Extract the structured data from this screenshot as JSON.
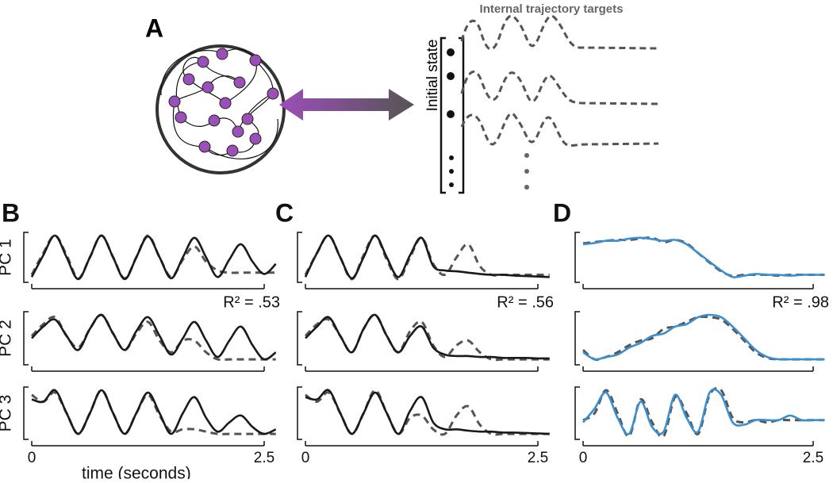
{
  "diagram": {
    "label": "A",
    "title": "Internal trajectory targets",
    "state_label": "Initial state"
  },
  "chart_data": [
    {
      "type": "line",
      "panel": "B",
      "ylabel": "PC 1",
      "annotation": "R² = .53",
      "x": [
        0,
        0.125,
        0.25,
        0.375,
        0.5,
        0.625,
        0.75,
        0.875,
        1,
        1.125,
        1.25,
        1.375,
        1.5,
        1.625,
        1.75,
        1.875,
        2,
        2.125,
        2.25,
        2.375,
        2.5,
        2.625
      ],
      "xlim": [
        0,
        2.7
      ],
      "ylim": [
        0,
        1
      ],
      "series": [
        {
          "color": "#555555",
          "dashed": true,
          "values": [
            0.1,
            0.6,
            1.0,
            0.55,
            0.02,
            0.5,
            1.0,
            0.5,
            0.02,
            0.5,
            1.0,
            0.5,
            0.05,
            0.45,
            0.75,
            0.4,
            0.2,
            0.15,
            0.15,
            0.15,
            0.15,
            0.15
          ]
        },
        {
          "color": "#1a1a1a",
          "dashed": false,
          "values": [
            0.05,
            0.55,
            1.0,
            0.5,
            0.0,
            0.5,
            1.0,
            0.5,
            0.0,
            0.5,
            0.98,
            0.5,
            0.02,
            0.5,
            0.95,
            0.5,
            0.05,
            0.45,
            0.8,
            0.4,
            0.12,
            0.35
          ]
        }
      ]
    },
    {
      "type": "line",
      "panel": "C",
      "annotation": "R² = .56",
      "x": [
        0,
        0.125,
        0.25,
        0.375,
        0.5,
        0.625,
        0.75,
        0.875,
        1,
        1.125,
        1.25,
        1.375,
        1.5,
        1.625,
        1.75,
        1.875,
        2,
        2.125,
        2.25,
        2.375,
        2.5,
        2.625
      ],
      "xlim": [
        0,
        2.7
      ],
      "ylim": [
        0,
        1
      ],
      "series": [
        {
          "color": "#555555",
          "dashed": true,
          "values": [
            0.1,
            0.6,
            1.0,
            0.5,
            0.0,
            0.55,
            1.0,
            0.45,
            0.0,
            0.5,
            0.95,
            0.35,
            0.1,
            0.5,
            0.8,
            0.3,
            0.1,
            0.1,
            0.1,
            0.1,
            0.1,
            0.1
          ]
        },
        {
          "color": "#1a1a1a",
          "dashed": false,
          "values": [
            0.05,
            0.6,
            1.0,
            0.5,
            0.02,
            0.5,
            1.0,
            0.5,
            0.05,
            0.55,
            0.95,
            0.3,
            0.2,
            0.18,
            0.15,
            0.12,
            0.1,
            0.1,
            0.08,
            0.07,
            0.06,
            0.05
          ]
        }
      ]
    },
    {
      "type": "line",
      "panel": "D",
      "annotation": "R² = .98",
      "x": [
        0,
        0.125,
        0.25,
        0.375,
        0.5,
        0.625,
        0.75,
        0.875,
        1,
        1.125,
        1.25,
        1.375,
        1.5,
        1.625,
        1.75,
        1.875,
        2,
        2.125,
        2.25,
        2.375,
        2.5,
        2.625
      ],
      "xlim": [
        0,
        2.7
      ],
      "ylim": [
        0,
        1
      ],
      "series": [
        {
          "color": "#555555",
          "dashed": true,
          "values": [
            0.82,
            0.85,
            0.88,
            0.9,
            0.9,
            0.93,
            0.95,
            0.85,
            0.9,
            0.82,
            0.6,
            0.38,
            0.18,
            0.07,
            0.1,
            0.1,
            0.1,
            0.08,
            0.1,
            0.1,
            0.1,
            0.1
          ]
        },
        {
          "color": "#3b8fd0",
          "dashed": false,
          "values": [
            0.8,
            0.83,
            0.88,
            0.88,
            0.93,
            0.95,
            0.92,
            0.88,
            0.9,
            0.8,
            0.6,
            0.4,
            0.2,
            0.05,
            0.08,
            0.12,
            0.1,
            0.1,
            0.08,
            0.1,
            0.1,
            0.1
          ]
        }
      ]
    },
    {
      "type": "line",
      "ylabel": "PC 2",
      "x": [
        0,
        0.125,
        0.25,
        0.375,
        0.5,
        0.625,
        0.75,
        0.875,
        1,
        1.125,
        1.25,
        1.375,
        1.5,
        1.625,
        1.75,
        1.875,
        2,
        2.125,
        2.25,
        2.375,
        2.5,
        2.625
      ],
      "xlim": [
        0,
        2.7
      ],
      "ylim": [
        0,
        1
      ],
      "series": [
        {
          "color": "#555555",
          "dashed": true,
          "values": [
            0.55,
            0.8,
            0.95,
            0.55,
            0.3,
            0.7,
            1.0,
            0.6,
            0.25,
            0.6,
            0.85,
            0.45,
            0.2,
            0.45,
            0.45,
            0.2,
            0.05,
            0.05,
            0.05,
            0.05,
            0.05,
            0.05
          ]
        },
        {
          "color": "#1a1a1a",
          "dashed": false,
          "values": [
            0.5,
            0.75,
            0.9,
            0.55,
            0.25,
            0.7,
            1.0,
            0.6,
            0.25,
            0.65,
            0.95,
            0.55,
            0.15,
            0.5,
            0.85,
            0.45,
            0.1,
            0.45,
            0.75,
            0.35,
            0.05,
            0.2
          ]
        }
      ]
    },
    {
      "type": "line",
      "x": [
        0,
        0.125,
        0.25,
        0.375,
        0.5,
        0.625,
        0.75,
        0.875,
        1,
        1.125,
        1.25,
        1.375,
        1.5,
        1.625,
        1.75,
        1.875,
        2,
        2.125,
        2.25,
        2.375,
        2.5,
        2.625
      ],
      "xlim": [
        0,
        2.7
      ],
      "ylim": [
        0,
        1
      ],
      "series": [
        {
          "color": "#555555",
          "dashed": true,
          "values": [
            0.55,
            0.8,
            0.9,
            0.55,
            0.2,
            0.7,
            1.0,
            0.55,
            0.2,
            0.65,
            0.85,
            0.35,
            0.1,
            0.35,
            0.45,
            0.2,
            0.05,
            0.05,
            0.05,
            0.05,
            0.05,
            0.05
          ]
        },
        {
          "color": "#1a1a1a",
          "dashed": false,
          "values": [
            0.5,
            0.75,
            0.95,
            0.55,
            0.2,
            0.7,
            1.0,
            0.55,
            0.2,
            0.55,
            0.75,
            0.3,
            0.15,
            0.12,
            0.12,
            0.1,
            0.1,
            0.08,
            0.08,
            0.08,
            0.07,
            0.07
          ]
        }
      ]
    },
    {
      "type": "line",
      "x": [
        0,
        0.125,
        0.25,
        0.375,
        0.5,
        0.625,
        0.75,
        0.875,
        1,
        1.125,
        1.25,
        1.375,
        1.5,
        1.625,
        1.75,
        1.875,
        2,
        2.125,
        2.25,
        2.375,
        2.5,
        2.625
      ],
      "xlim": [
        0,
        2.7
      ],
      "ylim": [
        0,
        1
      ],
      "series": [
        {
          "color": "#555555",
          "dashed": true,
          "values": [
            0.25,
            0.05,
            0.1,
            0.2,
            0.35,
            0.45,
            0.5,
            0.7,
            0.75,
            0.85,
            0.95,
            0.95,
            0.9,
            0.7,
            0.45,
            0.2,
            0.08,
            0.05,
            0.05,
            0.05,
            0.05,
            0.05
          ]
        },
        {
          "color": "#3b8fd0",
          "dashed": false,
          "values": [
            0.2,
            0.05,
            0.1,
            0.15,
            0.3,
            0.4,
            0.55,
            0.6,
            0.75,
            0.8,
            0.95,
            1.0,
            0.95,
            0.75,
            0.5,
            0.25,
            0.1,
            0.05,
            0.05,
            0.05,
            0.05,
            0.05
          ]
        }
      ]
    },
    {
      "type": "line",
      "ylabel": "PC 3",
      "xlabel": "time (seconds)",
      "x": [
        0,
        0.125,
        0.25,
        0.375,
        0.5,
        0.625,
        0.75,
        0.875,
        1,
        1.125,
        1.25,
        1.375,
        1.5,
        1.625,
        1.75,
        1.875,
        2,
        2.125,
        2.25,
        2.375,
        2.5,
        2.625
      ],
      "xlim": [
        0,
        2.7
      ],
      "ylim": [
        0,
        1
      ],
      "xticks": [
        0,
        2.5
      ],
      "series": [
        {
          "color": "#555555",
          "dashed": true,
          "values": [
            0.9,
            0.75,
            0.95,
            0.5,
            0.05,
            0.5,
            1.0,
            0.5,
            0.05,
            0.5,
            0.9,
            0.45,
            0.1,
            0.15,
            0.15,
            0.1,
            0.05,
            0.05,
            0.05,
            0.05,
            0.05,
            0.05
          ]
        },
        {
          "color": "#1a1a1a",
          "dashed": false,
          "values": [
            0.8,
            0.75,
            1.0,
            0.5,
            0.05,
            0.5,
            1.0,
            0.5,
            0.05,
            0.5,
            0.95,
            0.5,
            0.05,
            0.5,
            0.85,
            0.4,
            0.1,
            0.3,
            0.45,
            0.2,
            0.05,
            0.15
          ]
        }
      ]
    },
    {
      "type": "line",
      "x": [
        0,
        0.125,
        0.25,
        0.375,
        0.5,
        0.625,
        0.75,
        0.875,
        1,
        1.125,
        1.25,
        1.375,
        1.5,
        1.625,
        1.75,
        1.875,
        2,
        2.125,
        2.25,
        2.375,
        2.5,
        2.625
      ],
      "xlim": [
        0,
        2.7
      ],
      "ylim": [
        0,
        1
      ],
      "xticks": [
        0,
        2.5
      ],
      "series": [
        {
          "color": "#555555",
          "dashed": true,
          "values": [
            0.9,
            0.75,
            0.95,
            0.5,
            0.05,
            0.5,
            1.0,
            0.5,
            0.05,
            0.4,
            0.45,
            0.15,
            0.05,
            0.45,
            0.65,
            0.25,
            0.05,
            0.05,
            0.05,
            0.05,
            0.05,
            0.05
          ]
        },
        {
          "color": "#1a1a1a",
          "dashed": false,
          "values": [
            0.85,
            0.8,
            1.0,
            0.5,
            0.05,
            0.5,
            0.95,
            0.5,
            0.05,
            0.55,
            0.85,
            0.3,
            0.15,
            0.15,
            0.12,
            0.1,
            0.1,
            0.08,
            0.08,
            0.07,
            0.06,
            0.05
          ]
        }
      ]
    },
    {
      "type": "line",
      "x": [
        0,
        0.125,
        0.25,
        0.375,
        0.5,
        0.625,
        0.75,
        0.875,
        1,
        1.125,
        1.25,
        1.375,
        1.5,
        1.625,
        1.75,
        1.875,
        2,
        2.125,
        2.25,
        2.375,
        2.5,
        2.625
      ],
      "xlim": [
        0,
        2.7
      ],
      "ylim": [
        0,
        1
      ],
      "xticks": [
        0,
        2.5
      ],
      "series": [
        {
          "color": "#555555",
          "dashed": true,
          "values": [
            0.35,
            0.5,
            1.0,
            0.5,
            0.0,
            0.8,
            0.3,
            0.0,
            0.85,
            0.5,
            0.05,
            0.9,
            1.0,
            0.4,
            0.3,
            0.35,
            0.3,
            0.35,
            0.35,
            0.35,
            0.35,
            0.35
          ]
        },
        {
          "color": "#3b8fd0",
          "dashed": false,
          "values": [
            0.3,
            0.6,
            0.95,
            0.4,
            0.05,
            0.75,
            0.2,
            0.1,
            0.9,
            0.4,
            0.1,
            0.95,
            0.9,
            0.3,
            0.25,
            0.35,
            0.35,
            0.35,
            0.45,
            0.35,
            0.35,
            0.35
          ]
        }
      ]
    }
  ]
}
